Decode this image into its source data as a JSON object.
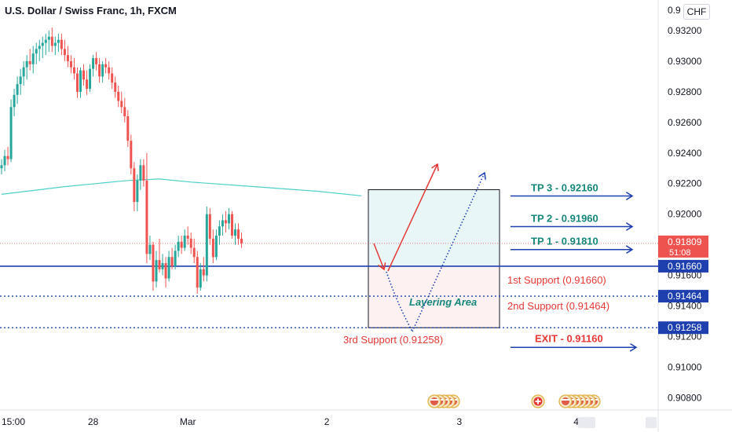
{
  "header": {
    "title": "U.S. Dollar / Swiss Franc, 1h, FXCM",
    "currency_button": "CHF"
  },
  "colors": {
    "up": "#26a69a",
    "down": "#ef5350",
    "ma": "#4dd0c8",
    "support_line": "#1e40af",
    "tp_arrow": "#1e40af",
    "tp_text": "#16877a",
    "support_text": "#e53935",
    "buy_zone_fill": "#e8f6f8",
    "sell_zone_fill": "#fdf1f1",
    "price_label": "#ef5350"
  },
  "chart_data": {
    "type": "candlestick",
    "title": "U.S. Dollar / Swiss Franc, 1h, FXCM",
    "y_axis": {
      "range": [
        0.9072,
        0.934
      ],
      "ticks": [
        "0.93200",
        "0.93000",
        "0.92800",
        "0.92600",
        "0.92400",
        "0.92200",
        "0.92000",
        "0.91800",
        "0.91600",
        "0.91400",
        "0.91200",
        "0.91000",
        "0.90800"
      ],
      "top_partial_label": "0.9"
    },
    "x_axis": {
      "labels": [
        {
          "text": "15:00",
          "at": 0
        },
        {
          "text": "28",
          "at": 29
        },
        {
          "text": "Mar",
          "at": 59
        },
        {
          "text": "2",
          "at": 103
        },
        {
          "text": "3",
          "at": 145
        },
        {
          "text": "4",
          "at": 182
        }
      ]
    },
    "candles": [
      [
        0.923,
        0.9236,
        0.9226,
        0.9232
      ],
      [
        0.9232,
        0.9242,
        0.9228,
        0.9238
      ],
      [
        0.9238,
        0.9244,
        0.9232,
        0.9236
      ],
      [
        0.9236,
        0.9275,
        0.9234,
        0.927
      ],
      [
        0.927,
        0.9282,
        0.9264,
        0.9278
      ],
      [
        0.9278,
        0.929,
        0.9272,
        0.9285
      ],
      [
        0.9285,
        0.9295,
        0.9278,
        0.929
      ],
      [
        0.929,
        0.93,
        0.9284,
        0.9296
      ],
      [
        0.9296,
        0.9304,
        0.9288,
        0.93
      ],
      [
        0.93,
        0.9308,
        0.9294,
        0.9298
      ],
      [
        0.9298,
        0.931,
        0.9292,
        0.9305
      ],
      [
        0.9305,
        0.9312,
        0.9298,
        0.9308
      ],
      [
        0.9308,
        0.9314,
        0.93,
        0.931
      ],
      [
        0.931,
        0.9316,
        0.9302,
        0.9312
      ],
      [
        0.9312,
        0.9318,
        0.9304,
        0.9314
      ],
      [
        0.9314,
        0.932,
        0.9306,
        0.9316
      ],
      [
        0.9316,
        0.9322,
        0.9306,
        0.931
      ],
      [
        0.931,
        0.9316,
        0.9304,
        0.9312
      ],
      [
        0.9312,
        0.9318,
        0.9306,
        0.9314
      ],
      [
        0.9314,
        0.9318,
        0.9304,
        0.9308
      ],
      [
        0.9308,
        0.9314,
        0.93,
        0.9304
      ],
      [
        0.9304,
        0.931,
        0.9296,
        0.93
      ],
      [
        0.93,
        0.9304,
        0.9292,
        0.9296
      ],
      [
        0.9296,
        0.9302,
        0.9288,
        0.9292
      ],
      [
        0.9292,
        0.9296,
        0.9276,
        0.928
      ],
      [
        0.928,
        0.9296,
        0.9276,
        0.9294
      ],
      [
        0.9294,
        0.9298,
        0.9284,
        0.9288
      ],
      [
        0.9288,
        0.9294,
        0.9278,
        0.9282
      ],
      [
        0.9282,
        0.9298,
        0.928,
        0.9295
      ],
      [
        0.9295,
        0.9304,
        0.929,
        0.9302
      ],
      [
        0.9302,
        0.9306,
        0.9294,
        0.9298
      ],
      [
        0.9298,
        0.9302,
        0.9286,
        0.929
      ],
      [
        0.929,
        0.93,
        0.9286,
        0.9298
      ],
      [
        0.9298,
        0.9302,
        0.9292,
        0.9296
      ],
      [
        0.9296,
        0.93,
        0.9288,
        0.9292
      ],
      [
        0.9292,
        0.9296,
        0.9282,
        0.9286
      ],
      [
        0.9286,
        0.929,
        0.9276,
        0.928
      ],
      [
        0.928,
        0.9284,
        0.927,
        0.9274
      ],
      [
        0.9274,
        0.928,
        0.9266,
        0.927
      ],
      [
        0.927,
        0.9276,
        0.926,
        0.9264
      ],
      [
        0.9264,
        0.9268,
        0.9244,
        0.9248
      ],
      [
        0.9248,
        0.9252,
        0.9226,
        0.923
      ],
      [
        0.923,
        0.9234,
        0.9202,
        0.9208
      ],
      [
        0.9208,
        0.9226,
        0.9202,
        0.9222
      ],
      [
        0.9222,
        0.9236,
        0.9216,
        0.9232
      ],
      [
        0.9232,
        0.9236,
        0.9218,
        0.9222
      ],
      [
        0.9222,
        0.924,
        0.9168,
        0.9174
      ],
      [
        0.9174,
        0.9186,
        0.917,
        0.918
      ],
      [
        0.918,
        0.9182,
        0.915,
        0.9156
      ],
      [
        0.9156,
        0.9176,
        0.9152,
        0.917
      ],
      [
        0.917,
        0.9184,
        0.9162,
        0.9164
      ],
      [
        0.9164,
        0.9174,
        0.916,
        0.9168
      ],
      [
        0.9168,
        0.9172,
        0.9152,
        0.9158
      ],
      [
        0.9158,
        0.9176,
        0.9156,
        0.9172
      ],
      [
        0.9172,
        0.9178,
        0.9164,
        0.9166
      ],
      [
        0.9166,
        0.918,
        0.9164,
        0.9176
      ],
      [
        0.9176,
        0.9186,
        0.9172,
        0.9182
      ],
      [
        0.9182,
        0.9186,
        0.9174,
        0.9178
      ],
      [
        0.9178,
        0.919,
        0.9176,
        0.9186
      ],
      [
        0.9186,
        0.9192,
        0.918,
        0.9184
      ],
      [
        0.9184,
        0.9188,
        0.9174,
        0.9178
      ],
      [
        0.9178,
        0.9184,
        0.9168,
        0.9172
      ],
      [
        0.9172,
        0.9176,
        0.9148,
        0.9152
      ],
      [
        0.9152,
        0.9168,
        0.915,
        0.9164
      ],
      [
        0.9164,
        0.9172,
        0.9156,
        0.916
      ],
      [
        0.916,
        0.9205,
        0.9156,
        0.92
      ],
      [
        0.92,
        0.9204,
        0.918,
        0.9184
      ],
      [
        0.9184,
        0.919,
        0.9168,
        0.9172
      ],
      [
        0.9172,
        0.919,
        0.917,
        0.9186
      ],
      [
        0.9186,
        0.9196,
        0.918,
        0.9192
      ],
      [
        0.9192,
        0.92,
        0.9186,
        0.9196
      ],
      [
        0.9196,
        0.9202,
        0.9188,
        0.9194
      ],
      [
        0.9194,
        0.9204,
        0.919,
        0.92
      ],
      [
        0.92,
        0.9202,
        0.9184,
        0.9186
      ],
      [
        0.9186,
        0.9194,
        0.918,
        0.919
      ],
      [
        0.919,
        0.9194,
        0.918,
        0.9184
      ],
      [
        0.9184,
        0.9188,
        0.9178,
        0.9181
      ]
    ],
    "moving_average": [
      [
        0,
        0.9213
      ],
      [
        20,
        0.9218
      ],
      [
        40,
        0.9222
      ],
      [
        50,
        0.9223
      ],
      [
        60,
        0.9221
      ],
      [
        80,
        0.9218
      ],
      [
        100,
        0.9215
      ],
      [
        114,
        0.9212
      ]
    ],
    "price_labels": [
      {
        "price": 0.91809,
        "text": "0.91809",
        "subtext": "51:08",
        "style": "current"
      },
      {
        "price": 0.9166,
        "text": "0.91660",
        "style": "line"
      },
      {
        "price": 0.91464,
        "text": "0.91464",
        "style": "line"
      },
      {
        "price": 0.91258,
        "text": "0.91258",
        "style": "line"
      }
    ],
    "levels": [
      {
        "price": 0.9166,
        "dash": false
      },
      {
        "price": 0.91464,
        "dash": true
      },
      {
        "price": 0.91258,
        "dash": true
      }
    ],
    "targets": [
      {
        "label": "TP 3 - 0.92160",
        "price": 0.9216
      },
      {
        "label": "TP 2 - 0.91960",
        "price": 0.9196
      },
      {
        "label": "TP 1 - 0.91810",
        "price": 0.9181
      }
    ],
    "exit": {
      "label": "EXIT - 0.91160",
      "price": 0.9116
    },
    "supports": [
      {
        "label": "1st Support (0.91660)"
      },
      {
        "label": "2nd Support (0.91464)"
      },
      {
        "label": "3rd Support (0.91258)"
      }
    ],
    "zone_label": "Layering Area",
    "zone": {
      "top": 0.9216,
      "mid": 0.9166,
      "bottom": 0.91258
    }
  }
}
